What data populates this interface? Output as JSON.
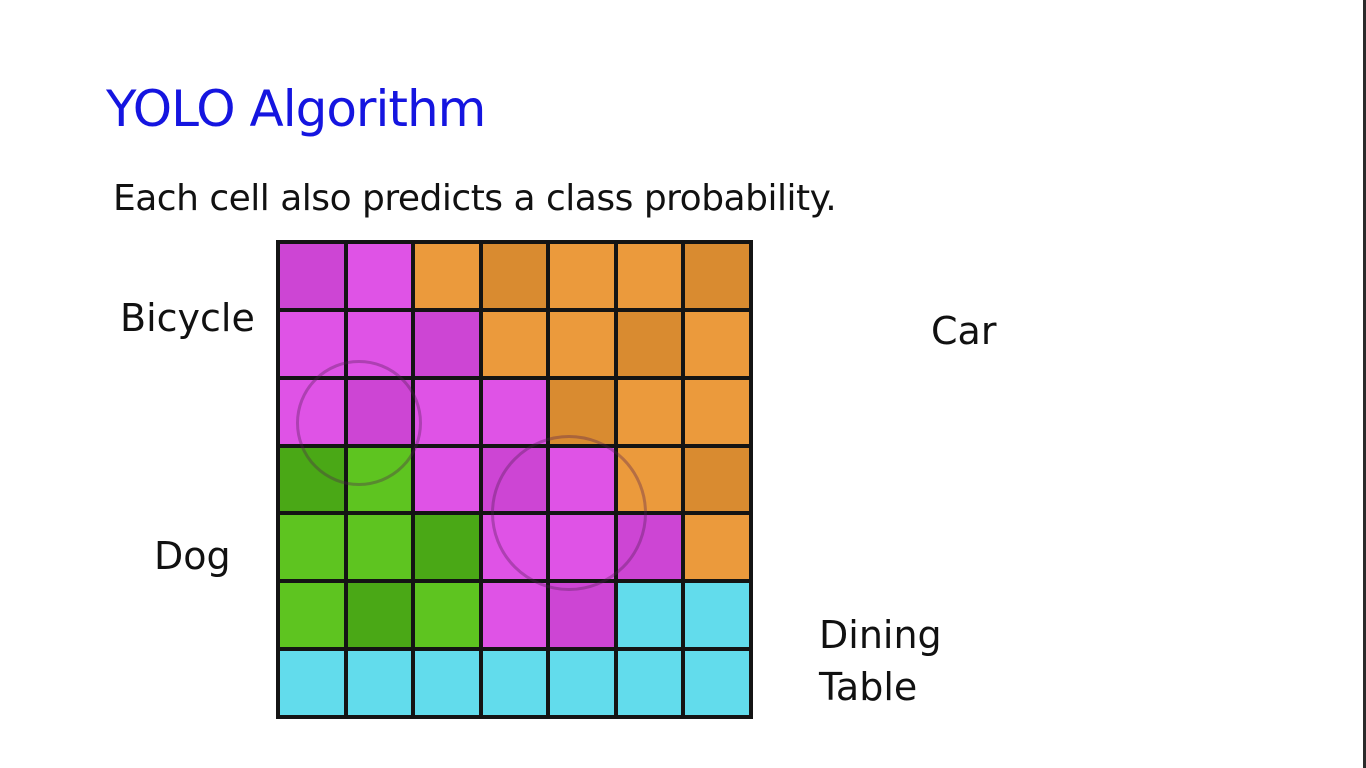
{
  "slide": {
    "title": "YOLO Algorithm",
    "subtitle": "Each cell also predicts a class probability."
  },
  "grid": {
    "rows": 7,
    "cols": 7,
    "cell_classes": [
      [
        "bicycle",
        "bicycle",
        "car",
        "car",
        "car",
        "car",
        "car"
      ],
      [
        "bicycle",
        "bicycle",
        "bicycle",
        "car",
        "car",
        "car",
        "car"
      ],
      [
        "bicycle",
        "bicycle",
        "bicycle",
        "bicycle",
        "car",
        "car",
        "car"
      ],
      [
        "dog",
        "dog",
        "bicycle",
        "bicycle",
        "bicycle",
        "car",
        "car"
      ],
      [
        "dog",
        "dog",
        "dog",
        "bicycle",
        "bicycle",
        "bicycle",
        "car"
      ],
      [
        "dog",
        "dog",
        "dog",
        "bicycle",
        "bicycle",
        "table",
        "table"
      ],
      [
        "table",
        "table",
        "table",
        "table",
        "table",
        "table",
        "table"
      ]
    ]
  },
  "class_colors": {
    "bicycle": "#df53e6",
    "car": "#eb9a3c",
    "dog": "#5ec420",
    "table": "#62dcec",
    "title": "#1515e0"
  },
  "labels": {
    "bicycle": "Bicycle",
    "car": "Car",
    "dog": "Dog",
    "table_line1": "Dining",
    "table_line2": "Table"
  }
}
